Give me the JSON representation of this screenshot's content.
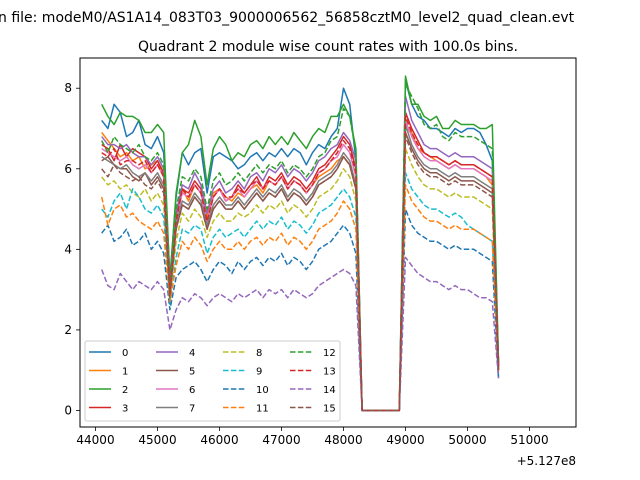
{
  "suptitle": "n file: modeM0/AS1A14_083T03_9000006562_56858cztM0_level2_quad_clean.evt",
  "chart_data": {
    "type": "line",
    "title": "Quadrant 2 module wise count rates with 100.0s bins.",
    "xlabel": "",
    "ylabel": "",
    "x_offset_label": "+5.127e8",
    "xlim": [
      43750,
      51750
    ],
    "ylim": [
      -0.41,
      8.75
    ],
    "x_ticks": [
      44000,
      45000,
      46000,
      47000,
      48000,
      49000,
      50000,
      51000
    ],
    "x_tick_labels": [
      "44000",
      "45000",
      "46000",
      "47000",
      "48000",
      "49000",
      "50000",
      "51000"
    ],
    "y_ticks": [
      0,
      2,
      4,
      6,
      8
    ],
    "y_tick_labels": [
      "0",
      "2",
      "4",
      "6",
      "8"
    ],
    "grid": false,
    "legend_position": "lower-left",
    "legend_columns": 4,
    "gap_interval": [
      49000,
      49600
    ],
    "x_start": 44100,
    "x_step": 100,
    "series": [
      {
        "name": "0",
        "color": "#1f77b4",
        "style": "solid",
        "values": [
          7.2,
          7.0,
          7.6,
          7.4,
          6.8,
          6.9,
          7.2,
          6.6,
          6.5,
          6.8,
          6.4,
          3.3,
          5.3,
          6.4,
          6.1,
          6.4,
          6.5,
          5.4,
          6.3,
          6.4,
          6.3,
          6.2,
          6.0,
          6.1,
          6.3,
          6.4,
          6.2,
          6.4,
          6.3,
          6.5,
          6.3,
          6.5,
          6.4,
          6.1,
          6.4,
          6.6,
          6.5,
          6.8,
          7.0,
          8.0,
          7.6,
          6.2,
          0.0,
          0.0,
          0.0,
          0.0,
          0.0,
          0.0,
          0.0,
          8.2,
          7.6,
          7.3,
          7.2,
          7.0,
          7.0,
          6.9,
          6.8,
          7.0,
          6.9,
          7.0,
          7.0,
          6.9,
          6.6,
          6.2,
          1.2
        ]
      },
      {
        "name": "1",
        "color": "#ff7f0e",
        "style": "solid",
        "values": [
          6.9,
          6.7,
          6.5,
          6.3,
          6.4,
          6.2,
          6.3,
          6.0,
          6.1,
          6.2,
          5.8,
          3.0,
          4.7,
          5.5,
          5.2,
          5.6,
          5.4,
          4.8,
          5.4,
          5.5,
          5.3,
          5.2,
          5.4,
          5.3,
          5.5,
          5.6,
          5.4,
          5.7,
          5.6,
          5.8,
          5.5,
          5.7,
          5.6,
          5.4,
          5.6,
          5.8,
          5.9,
          6.0,
          6.2,
          6.3,
          6.1,
          5.5,
          0.0,
          0.0,
          0.0,
          0.0,
          0.0,
          0.0,
          0.0,
          7.0,
          6.9,
          6.5,
          6.4,
          6.3,
          6.2,
          6.1,
          6.0,
          6.1,
          6.0,
          6.0,
          6.0,
          5.9,
          5.8,
          5.6,
          1.1
        ]
      },
      {
        "name": "2",
        "color": "#2ca02c",
        "style": "solid",
        "values": [
          7.6,
          7.3,
          7.1,
          7.4,
          7.3,
          7.3,
          7.2,
          6.9,
          6.9,
          7.1,
          6.9,
          3.2,
          5.4,
          6.4,
          6.6,
          7.2,
          6.8,
          5.6,
          6.5,
          6.8,
          6.6,
          6.2,
          6.4,
          6.3,
          6.6,
          6.7,
          6.5,
          6.8,
          6.6,
          6.8,
          6.6,
          6.9,
          6.7,
          6.5,
          6.8,
          7.0,
          6.9,
          7.3,
          7.3,
          7.6,
          7.3,
          6.5,
          0.0,
          0.0,
          0.0,
          0.0,
          0.0,
          0.0,
          0.0,
          8.3,
          7.6,
          7.6,
          7.3,
          7.2,
          7.3,
          7.0,
          7.0,
          7.2,
          7.1,
          7.1,
          7.1,
          7.0,
          7.0,
          7.1,
          1.2
        ]
      },
      {
        "name": "3",
        "color": "#d62728",
        "style": "solid",
        "values": [
          6.6,
          6.5,
          6.2,
          6.6,
          6.3,
          6.5,
          6.4,
          6.3,
          6.0,
          6.2,
          5.9,
          3.1,
          4.8,
          5.5,
          5.4,
          5.7,
          5.5,
          4.7,
          5.3,
          5.5,
          5.2,
          5.3,
          5.6,
          5.4,
          5.6,
          5.8,
          5.5,
          5.8,
          5.7,
          5.9,
          5.6,
          5.8,
          5.7,
          5.5,
          5.7,
          6.0,
          6.1,
          6.3,
          6.5,
          6.8,
          6.6,
          6.0,
          0.0,
          0.0,
          0.0,
          0.0,
          0.0,
          0.0,
          0.0,
          7.4,
          7.0,
          6.7,
          6.4,
          6.3,
          6.3,
          6.2,
          6.1,
          6.2,
          6.1,
          6.1,
          6.1,
          6.0,
          5.9,
          5.8,
          1.1
        ]
      },
      {
        "name": "4",
        "color": "#9467bd",
        "style": "solid",
        "values": [
          6.8,
          6.6,
          6.6,
          6.5,
          6.6,
          6.4,
          6.3,
          6.3,
          6.1,
          6.3,
          6.0,
          3.0,
          4.9,
          5.6,
          5.5,
          5.9,
          5.6,
          4.9,
          5.5,
          5.7,
          5.4,
          5.5,
          5.7,
          5.5,
          5.8,
          5.9,
          5.7,
          6.0,
          5.9,
          6.1,
          5.8,
          6.0,
          5.9,
          5.7,
          5.9,
          6.2,
          6.3,
          6.5,
          6.6,
          6.9,
          6.7,
          6.2,
          0.0,
          0.0,
          0.0,
          0.0,
          0.0,
          0.0,
          0.0,
          7.8,
          7.2,
          6.9,
          6.6,
          6.5,
          6.5,
          6.4,
          6.3,
          6.4,
          6.3,
          6.3,
          6.3,
          6.2,
          6.1,
          6.0,
          1.1
        ]
      },
      {
        "name": "5",
        "color": "#8c564b",
        "style": "solid",
        "values": [
          6.2,
          6.3,
          6.1,
          6.0,
          6.0,
          5.8,
          5.7,
          5.9,
          5.6,
          5.8,
          5.5,
          2.8,
          4.5,
          5.1,
          5.0,
          5.3,
          5.1,
          4.5,
          5.0,
          5.2,
          5.0,
          5.0,
          5.2,
          5.0,
          5.2,
          5.4,
          5.2,
          5.4,
          5.3,
          5.5,
          5.2,
          5.4,
          5.3,
          5.1,
          5.3,
          5.6,
          5.7,
          5.8,
          6.0,
          6.3,
          6.1,
          5.5,
          0.0,
          0.0,
          0.0,
          0.0,
          0.0,
          0.0,
          0.0,
          6.9,
          6.5,
          6.2,
          6.0,
          5.9,
          5.9,
          5.8,
          5.7,
          5.8,
          5.7,
          5.7,
          5.7,
          5.6,
          5.5,
          5.4,
          1.0
        ]
      },
      {
        "name": "6",
        "color": "#e377c2",
        "style": "solid",
        "values": [
          6.5,
          6.4,
          6.3,
          6.2,
          6.3,
          6.1,
          6.0,
          6.1,
          5.9,
          6.1,
          5.8,
          2.9,
          4.7,
          5.4,
          5.3,
          5.6,
          5.4,
          4.7,
          5.3,
          5.5,
          5.2,
          5.3,
          5.5,
          5.3,
          5.5,
          5.7,
          5.5,
          5.7,
          5.6,
          5.8,
          5.5,
          5.7,
          5.6,
          5.4,
          5.6,
          5.9,
          6.0,
          6.2,
          6.3,
          6.6,
          6.4,
          5.8,
          0.0,
          0.0,
          0.0,
          0.0,
          0.0,
          0.0,
          0.0,
          7.2,
          6.8,
          6.5,
          6.3,
          6.2,
          6.2,
          6.1,
          6.0,
          6.1,
          6.0,
          6.0,
          6.0,
          5.9,
          5.8,
          5.7,
          1.1
        ]
      },
      {
        "name": "7",
        "color": "#7f7f7f",
        "style": "solid",
        "values": [
          6.3,
          6.2,
          6.1,
          6.0,
          6.1,
          5.9,
          5.8,
          5.9,
          5.7,
          5.9,
          5.6,
          2.8,
          4.6,
          5.2,
          5.1,
          5.4,
          5.2,
          4.6,
          5.1,
          5.3,
          5.1,
          5.1,
          5.3,
          5.1,
          5.3,
          5.5,
          5.3,
          5.5,
          5.4,
          5.6,
          5.3,
          5.5,
          5.4,
          5.2,
          5.4,
          5.7,
          5.8,
          5.9,
          6.1,
          6.4,
          6.2,
          5.6,
          0.0,
          0.0,
          0.0,
          0.0,
          0.0,
          0.0,
          0.0,
          7.1,
          6.6,
          6.3,
          6.1,
          6.0,
          6.0,
          5.9,
          5.8,
          5.9,
          5.8,
          5.8,
          5.8,
          5.7,
          5.6,
          5.5,
          1.0
        ]
      },
      {
        "name": "8",
        "color": "#bcbd22",
        "style": "dashed",
        "values": [
          5.8,
          5.6,
          5.7,
          5.5,
          5.6,
          5.4,
          5.3,
          5.5,
          5.2,
          5.4,
          5.1,
          2.7,
          4.2,
          4.9,
          4.7,
          5.0,
          4.8,
          4.3,
          4.7,
          4.9,
          4.7,
          4.7,
          4.9,
          4.8,
          4.9,
          5.1,
          4.9,
          5.1,
          5.0,
          5.2,
          4.9,
          5.1,
          5.0,
          4.8,
          5.0,
          5.3,
          5.4,
          5.5,
          5.7,
          6.0,
          5.8,
          5.2,
          0.0,
          0.0,
          0.0,
          0.0,
          0.0,
          0.0,
          0.0,
          6.5,
          6.1,
          5.8,
          5.6,
          5.5,
          5.5,
          5.4,
          5.3,
          5.4,
          5.3,
          5.3,
          5.3,
          5.2,
          5.1,
          5.0,
          0.9
        ]
      },
      {
        "name": "9",
        "color": "#17becf",
        "style": "dashed",
        "values": [
          5.0,
          4.8,
          5.2,
          5.4,
          5.0,
          5.5,
          5.3,
          5.0,
          4.9,
          5.1,
          4.8,
          2.6,
          3.8,
          4.5,
          4.4,
          4.6,
          4.5,
          3.9,
          4.3,
          4.5,
          4.3,
          4.4,
          4.5,
          4.3,
          4.5,
          4.7,
          4.5,
          4.7,
          4.6,
          4.8,
          4.5,
          4.7,
          4.6,
          4.4,
          4.6,
          4.9,
          5.0,
          5.1,
          5.3,
          5.5,
          5.3,
          4.8,
          0.0,
          0.0,
          0.0,
          0.0,
          0.0,
          0.0,
          0.0,
          5.9,
          5.5,
          5.3,
          5.1,
          5.0,
          5.0,
          4.9,
          4.8,
          4.9,
          4.8,
          4.6,
          4.5,
          4.4,
          4.3,
          4.2,
          0.8
        ]
      },
      {
        "name": "10",
        "color": "#1f77b4",
        "style": "dashed",
        "values": [
          4.4,
          4.6,
          4.2,
          4.3,
          4.5,
          4.1,
          4.2,
          4.4,
          4.0,
          4.2,
          3.9,
          2.5,
          3.3,
          3.5,
          3.6,
          3.7,
          3.5,
          3.2,
          3.5,
          3.7,
          3.6,
          3.4,
          3.7,
          3.5,
          3.7,
          3.8,
          3.6,
          3.8,
          3.7,
          3.9,
          3.6,
          3.8,
          3.7,
          3.5,
          3.7,
          4.0,
          4.1,
          4.2,
          4.4,
          4.6,
          4.4,
          3.9,
          0.0,
          0.0,
          0.0,
          0.0,
          0.0,
          0.0,
          0.0,
          5.0,
          4.6,
          4.4,
          4.3,
          4.2,
          4.2,
          4.1,
          4.0,
          4.1,
          4.0,
          4.0,
          4.0,
          3.9,
          3.8,
          3.7,
          0.8
        ]
      },
      {
        "name": "11",
        "color": "#ff7f0e",
        "style": "dashed",
        "values": [
          5.3,
          4.6,
          5.0,
          5.1,
          4.8,
          4.9,
          4.7,
          4.6,
          4.5,
          4.7,
          4.4,
          2.7,
          3.6,
          4.2,
          4.0,
          4.3,
          4.1,
          3.7,
          4.0,
          4.2,
          4.0,
          4.0,
          4.2,
          4.0,
          4.2,
          4.3,
          4.1,
          4.3,
          4.2,
          4.4,
          4.1,
          4.3,
          4.2,
          4.0,
          4.2,
          4.5,
          4.6,
          4.7,
          4.9,
          5.2,
          5.0,
          4.5,
          0.0,
          0.0,
          0.0,
          0.0,
          0.0,
          0.0,
          0.0,
          5.6,
          5.2,
          5.0,
          4.8,
          4.7,
          4.7,
          4.6,
          4.5,
          4.6,
          4.5,
          4.5,
          4.5,
          4.4,
          4.3,
          4.2,
          1.0
        ]
      },
      {
        "name": "12",
        "color": "#2ca02c",
        "style": "dashed",
        "values": [
          6.7,
          6.4,
          6.8,
          6.6,
          6.5,
          6.4,
          6.6,
          6.3,
          6.2,
          6.4,
          6.1,
          3.0,
          5.0,
          5.8,
          5.7,
          6.0,
          5.8,
          5.0,
          5.7,
          5.9,
          5.6,
          5.7,
          5.9,
          5.7,
          5.9,
          6.1,
          5.9,
          6.1,
          6.0,
          6.2,
          5.9,
          6.1,
          6.0,
          5.8,
          6.0,
          6.3,
          6.4,
          6.7,
          6.8,
          7.5,
          7.3,
          6.4,
          0.0,
          0.0,
          0.0,
          0.0,
          0.0,
          0.0,
          0.0,
          8.1,
          7.8,
          7.5,
          7.1,
          7.0,
          7.1,
          6.8,
          6.7,
          6.9,
          6.8,
          6.8,
          6.8,
          6.7,
          6.6,
          6.5,
          1.2
        ]
      },
      {
        "name": "13",
        "color": "#d62728",
        "style": "dashed",
        "values": [
          6.4,
          6.3,
          6.5,
          6.1,
          6.2,
          6.2,
          6.1,
          6.2,
          5.9,
          6.1,
          5.8,
          2.9,
          4.7,
          5.5,
          5.3,
          5.6,
          5.4,
          4.7,
          5.3,
          5.5,
          5.3,
          5.3,
          5.5,
          5.4,
          5.6,
          5.7,
          5.5,
          5.7,
          5.6,
          5.8,
          5.5,
          5.7,
          5.6,
          5.4,
          5.6,
          5.9,
          6.0,
          6.2,
          6.4,
          6.7,
          6.5,
          5.9,
          0.0,
          0.0,
          0.0,
          0.0,
          0.0,
          0.0,
          0.0,
          7.3,
          6.9,
          6.6,
          6.4,
          6.3,
          6.3,
          6.2,
          6.1,
          6.2,
          6.1,
          6.1,
          6.1,
          6.0,
          5.9,
          5.8,
          1.1
        ]
      },
      {
        "name": "14",
        "color": "#9467bd",
        "style": "dashed",
        "values": [
          3.5,
          3.1,
          3.0,
          3.4,
          3.2,
          3.0,
          3.2,
          3.1,
          3.0,
          3.2,
          3.0,
          2.0,
          2.5,
          2.8,
          2.7,
          2.9,
          2.8,
          2.6,
          2.8,
          2.9,
          2.8,
          2.7,
          2.9,
          2.8,
          2.9,
          3.0,
          2.8,
          3.0,
          2.9,
          3.0,
          2.8,
          3.0,
          2.9,
          2.8,
          2.9,
          3.1,
          3.2,
          3.3,
          3.4,
          3.5,
          3.4,
          3.1,
          0.0,
          0.0,
          0.0,
          0.0,
          0.0,
          0.0,
          0.0,
          3.8,
          3.6,
          3.4,
          3.3,
          3.2,
          3.2,
          3.1,
          3.0,
          3.1,
          3.0,
          3.0,
          2.9,
          2.8,
          2.8,
          2.7,
          0.8
        ]
      },
      {
        "name": "15",
        "color": "#8c564b",
        "style": "dashed",
        "values": [
          6.0,
          5.8,
          6.1,
          5.9,
          5.8,
          5.7,
          5.8,
          5.6,
          5.5,
          5.7,
          5.4,
          2.8,
          4.5,
          5.1,
          5.0,
          5.3,
          5.1,
          4.5,
          5.0,
          5.2,
          5.0,
          5.0,
          5.2,
          5.0,
          5.2,
          5.4,
          5.2,
          5.4,
          5.3,
          5.5,
          5.2,
          5.4,
          5.3,
          5.1,
          5.3,
          5.6,
          5.7,
          5.8,
          6.0,
          6.3,
          6.1,
          5.5,
          0.0,
          0.0,
          0.0,
          0.0,
          0.0,
          0.0,
          0.0,
          6.8,
          6.4,
          6.1,
          5.9,
          5.8,
          5.8,
          5.7,
          5.6,
          5.7,
          5.6,
          5.6,
          5.6,
          5.5,
          5.4,
          5.3,
          1.0
        ]
      }
    ]
  }
}
